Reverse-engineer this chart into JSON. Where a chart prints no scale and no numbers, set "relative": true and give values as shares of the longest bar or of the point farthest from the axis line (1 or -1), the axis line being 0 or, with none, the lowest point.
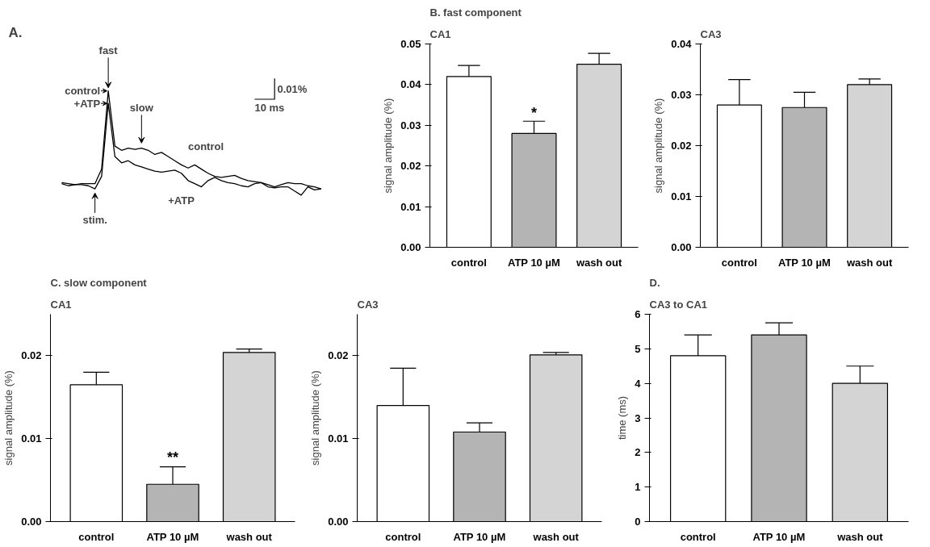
{
  "chart_data": [
    {
      "type": "line",
      "relative": true,
      "title": "A.",
      "annotations": [
        "fast",
        "slow",
        "stim.",
        "0.01%",
        "10 ms"
      ],
      "marker": "none",
      "line_style": "solid",
      "grid": false,
      "legend": "top left",
      "categories": [
        null,
        null,
        null,
        null,
        null,
        null,
        null,
        null,
        null,
        null,
        null,
        null,
        null,
        null,
        null,
        null,
        null,
        null,
        null,
        null,
        null,
        null,
        null,
        null,
        null,
        null,
        null,
        null,
        null,
        null,
        null,
        null,
        null,
        null,
        null,
        null,
        null,
        null,
        null,
        null
      ],
      "series": [
        {
          "name": "control",
          "color": "#000000",
          "values": [
            0.12,
            0.11,
            0.1,
            0.11,
            0.11,
            0.11,
            0.25,
            1,
            0.47,
            0.43,
            0.45,
            0.44,
            0.45,
            0.43,
            0.39,
            0.41,
            0.37,
            0.33,
            0.29,
            0.26,
            0.29,
            0.25,
            0.21,
            0.18,
            0.17,
            0.18,
            0.19,
            0.16,
            0.14,
            0.13,
            0.12,
            0.1,
            0.08,
            0.1,
            0.12,
            0.11,
            0.11,
            0.09,
            0.08,
            0.06
          ]
        },
        {
          "name": "+ATP",
          "color": "#000000",
          "values": [
            0.11,
            0.09,
            0.1,
            0.1,
            0.09,
            0.06,
            0.18,
            0.88,
            0.37,
            0.31,
            0.33,
            0.29,
            0.27,
            0.25,
            0.23,
            0.22,
            0.23,
            0.24,
            0.21,
            0.14,
            0.11,
            0.08,
            0.14,
            0.17,
            0.14,
            0.12,
            0.11,
            0.09,
            0.08,
            0.11,
            0.12,
            0.08,
            0.07,
            0.08,
            0.08,
            0.04,
            0,
            0.08,
            0.05,
            0.06
          ]
        }
      ]
    },
    {
      "type": "bar",
      "title": "CA1",
      "annotations": [
        "B.",
        "fast component",
        {
          "text": "*",
          "x": "ATP 10 µM",
          "y": 0.031
        }
      ],
      "ylabel": "signal amplitude (%)",
      "grid": false,
      "categories": [
        "control",
        "ATP 10 µM",
        "wash out"
      ],
      "values": [
        0.042,
        0.028,
        0.045
      ],
      "colors": [
        "#ffffff",
        "#b4b4b4",
        "#d4d4d4"
      ],
      "errors": [
        [
          0.042,
          0.0447
        ],
        [
          0.028,
          0.031
        ],
        [
          0.045,
          0.0477
        ]
      ],
      "ylim": [
        0,
        0.05
      ],
      "yticks": [
        {
          "value": 0,
          "label": "0.00"
        },
        {
          "value": 0.01,
          "label": "0.01"
        },
        {
          "value": 0.02,
          "label": "0.02"
        },
        {
          "value": 0.03,
          "label": "0.03"
        },
        {
          "value": 0.04,
          "label": "0.04"
        },
        {
          "value": 0.05,
          "label": "0.05"
        }
      ]
    },
    {
      "type": "bar",
      "title": "CA3",
      "ylabel": "signal amplitude (%)",
      "grid": false,
      "categories": [
        "control",
        "ATP 10 µM",
        "wash out"
      ],
      "values": [
        0.028,
        0.0275,
        0.032
      ],
      "colors": [
        "#ffffff",
        "#b4b4b4",
        "#d4d4d4"
      ],
      "errors": [
        [
          0.028,
          0.033
        ],
        [
          0.0275,
          0.0305
        ],
        [
          0.032,
          0.0331
        ]
      ],
      "ylim": [
        0,
        0.04
      ],
      "yticks": [
        {
          "value": 0,
          "label": "0.00"
        },
        {
          "value": 0.01,
          "label": "0.01"
        },
        {
          "value": 0.02,
          "label": "0.02"
        },
        {
          "value": 0.03,
          "label": "0.03"
        },
        {
          "value": 0.04,
          "label": "0.04"
        }
      ]
    },
    {
      "type": "bar",
      "title": "CA1",
      "annotations": [
        "C.",
        "slow component",
        {
          "text": "**",
          "x": "ATP 10 µM",
          "y": 0.0068
        }
      ],
      "ylabel": "signal amplitude (%)",
      "grid": false,
      "categories": [
        "control",
        "ATP 10 µM",
        "wash out"
      ],
      "values": [
        0.0165,
        0.0045,
        0.0204
      ],
      "colors": [
        "#ffffff",
        "#b4b4b4",
        "#d4d4d4"
      ],
      "errors": [
        [
          0.0165,
          0.018
        ],
        [
          0.0045,
          0.0066
        ],
        [
          0.0204,
          0.0208
        ]
      ],
      "ylim": [
        0,
        0.025
      ],
      "yticks": [
        {
          "value": 0,
          "label": "0.00"
        },
        {
          "value": 0.01,
          "label": "0.01"
        },
        {
          "value": 0.02,
          "label": "0.02"
        }
      ]
    },
    {
      "type": "bar",
      "title": "CA3",
      "ylabel": "signal amplitude (%)",
      "grid": false,
      "categories": [
        "control",
        "ATP 10 µM",
        "wash out"
      ],
      "values": [
        0.014,
        0.0108,
        0.0201
      ],
      "colors": [
        "#ffffff",
        "#b4b4b4",
        "#d4d4d4"
      ],
      "errors": [
        [
          0.014,
          0.0185
        ],
        [
          0.0108,
          0.0119
        ],
        [
          0.0201,
          0.0204
        ]
      ],
      "ylim": [
        0,
        0.025
      ],
      "yticks": [
        {
          "value": 0,
          "label": "0.00"
        },
        {
          "value": 0.01,
          "label": "0.01"
        },
        {
          "value": 0.02,
          "label": "0.02"
        }
      ]
    },
    {
      "type": "bar",
      "title": "CA3 to CA1",
      "annotations": [
        "D."
      ],
      "ylabel": "time (ms)",
      "grid": false,
      "categories": [
        "control",
        "ATP 10 µM",
        "wash out"
      ],
      "values": [
        4.8,
        5.4,
        4.0
      ],
      "colors": [
        "#ffffff",
        "#b4b4b4",
        "#d4d4d4"
      ],
      "errors": [
        [
          4.8,
          5.4
        ],
        [
          5.4,
          5.75
        ],
        [
          4.0,
          4.5
        ]
      ],
      "ylim": [
        0,
        6
      ],
      "yticks": [
        0,
        1,
        2,
        3,
        4,
        5,
        6
      ]
    }
  ]
}
